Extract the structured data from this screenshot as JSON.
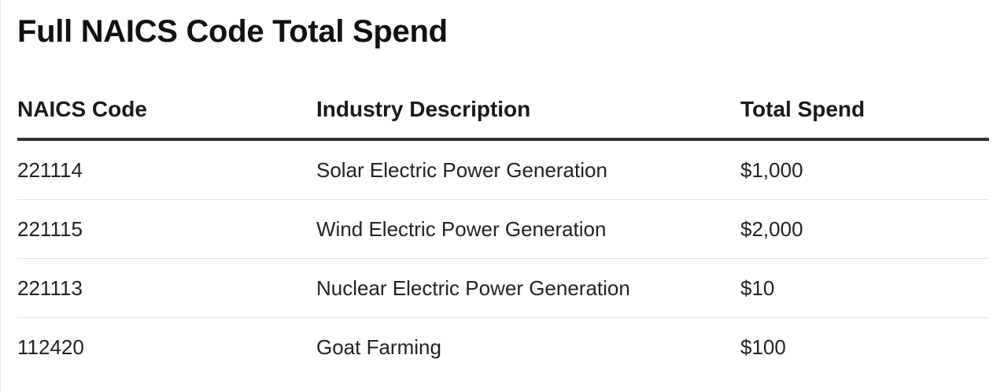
{
  "title": "Full NAICS Code Total Spend",
  "table": {
    "headers": [
      "NAICS Code",
      "Industry Description",
      "Total Spend"
    ],
    "rows": [
      {
        "code": "221114",
        "description": "Solar Electric Power Generation",
        "spend": "$1,000"
      },
      {
        "code": "221115",
        "description": "Wind Electric Power Generation",
        "spend": "$2,000"
      },
      {
        "code": "221113",
        "description": "Nuclear Electric Power Generation",
        "spend": "$10"
      },
      {
        "code": "112420",
        "description": "Goat Farming",
        "spend": "$100"
      }
    ]
  }
}
